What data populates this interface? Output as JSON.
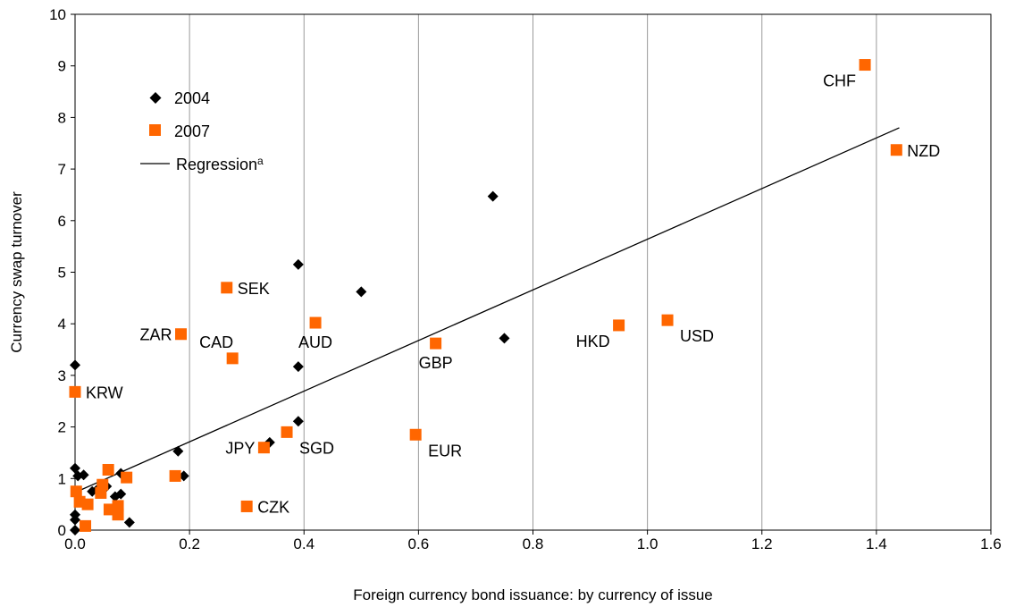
{
  "chart_data": {
    "type": "scatter",
    "xlabel": "Foreign currency bond issuance: by currency of issue",
    "ylabel": "Currency swap turnover",
    "xlim": [
      0,
      1.6
    ],
    "ylim": [
      0,
      10
    ],
    "x_ticks": [
      "0.0",
      "0.2",
      "0.4",
      "0.6",
      "0.8",
      "1.0",
      "1.2",
      "1.4",
      "1.6"
    ],
    "y_ticks": [
      "0",
      "1",
      "2",
      "3",
      "4",
      "5",
      "6",
      "7",
      "8",
      "9",
      "10"
    ],
    "grid": "vertical",
    "legend_placement": "top-left",
    "legend": {
      "s2004": "2004",
      "s2007": "2007",
      "regression_base": "Regression",
      "regression_sup": "a"
    },
    "colors": {
      "s2004": "#000000",
      "s2007": "#ff6600",
      "regression": "#000000"
    },
    "series": [
      {
        "name": "2004",
        "marker": "diamond",
        "points": [
          {
            "x": 0.0,
            "y": 3.2
          },
          {
            "x": 0.39,
            "y": 5.15
          },
          {
            "x": 0.73,
            "y": 6.47
          },
          {
            "x": 0.5,
            "y": 4.62
          },
          {
            "x": 0.75,
            "y": 3.72
          },
          {
            "x": 0.39,
            "y": 3.17
          },
          {
            "x": 0.39,
            "y": 2.11
          },
          {
            "x": 0.34,
            "y": 1.7
          },
          {
            "x": 0.18,
            "y": 1.53
          },
          {
            "x": 0.19,
            "y": 1.05
          },
          {
            "x": 0.0,
            "y": 1.2
          },
          {
            "x": 0.005,
            "y": 1.05
          },
          {
            "x": 0.015,
            "y": 1.07
          },
          {
            "x": 0.08,
            "y": 1.1
          },
          {
            "x": 0.03,
            "y": 0.75
          },
          {
            "x": 0.07,
            "y": 0.65
          },
          {
            "x": 0.08,
            "y": 0.7
          },
          {
            "x": 0.055,
            "y": 0.85
          },
          {
            "x": 0.095,
            "y": 0.15
          },
          {
            "x": 0.0,
            "y": 0.3
          },
          {
            "x": 0.0,
            "y": 0.2
          },
          {
            "x": 0.0,
            "y": 0.0
          },
          {
            "x": 0.04,
            "y": 0.8
          }
        ]
      },
      {
        "name": "2007",
        "marker": "square",
        "points": [
          {
            "x": 1.38,
            "y": 9.02,
            "label": "CHF",
            "pos": "left-below"
          },
          {
            "x": 1.435,
            "y": 7.37,
            "label": "NZD",
            "pos": "right"
          },
          {
            "x": 0.265,
            "y": 4.7,
            "label": "SEK",
            "pos": "right"
          },
          {
            "x": 0.42,
            "y": 4.02,
            "label": "AUD",
            "pos": "below"
          },
          {
            "x": 0.185,
            "y": 3.8,
            "label": "ZAR",
            "pos": "left"
          },
          {
            "x": 0.275,
            "y": 3.33,
            "label": "CAD",
            "pos": "above"
          },
          {
            "x": 0.63,
            "y": 3.62,
            "label": "GBP",
            "pos": "below"
          },
          {
            "x": 0.95,
            "y": 3.97,
            "label": "HKD",
            "pos": "left-below"
          },
          {
            "x": 1.035,
            "y": 4.07,
            "label": "USD",
            "pos": "right-below"
          },
          {
            "x": 0.0,
            "y": 2.68,
            "label": "KRW",
            "pos": "right"
          },
          {
            "x": 0.37,
            "y": 1.9,
            "label": "SGD",
            "pos": "right-below"
          },
          {
            "x": 0.33,
            "y": 1.6,
            "label": "JPY",
            "pos": "left"
          },
          {
            "x": 0.595,
            "y": 1.85,
            "label": "EUR",
            "pos": "right-below"
          },
          {
            "x": 0.3,
            "y": 0.46,
            "label": "CZK",
            "pos": "right"
          },
          {
            "x": 0.175,
            "y": 1.05
          },
          {
            "x": 0.09,
            "y": 1.02
          },
          {
            "x": 0.058,
            "y": 1.17
          },
          {
            "x": 0.048,
            "y": 0.88
          },
          {
            "x": 0.045,
            "y": 0.72
          },
          {
            "x": 0.002,
            "y": 0.75
          },
          {
            "x": 0.008,
            "y": 0.55
          },
          {
            "x": 0.022,
            "y": 0.5
          },
          {
            "x": 0.06,
            "y": 0.4
          },
          {
            "x": 0.075,
            "y": 0.47
          },
          {
            "x": 0.075,
            "y": 0.3
          },
          {
            "x": 0.018,
            "y": 0.08
          }
        ]
      }
    ],
    "regression": {
      "x": [
        0.0,
        1.44
      ],
      "y": [
        0.73,
        7.8
      ]
    }
  }
}
